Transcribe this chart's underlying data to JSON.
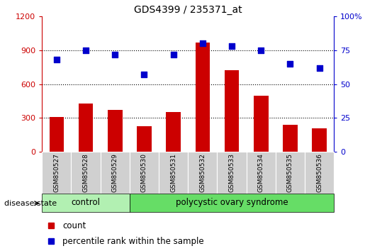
{
  "title": "GDS4399 / 235371_at",
  "samples": [
    "GSM850527",
    "GSM850528",
    "GSM850529",
    "GSM850530",
    "GSM850531",
    "GSM850532",
    "GSM850533",
    "GSM850534",
    "GSM850535",
    "GSM850536"
  ],
  "counts": [
    310,
    430,
    370,
    230,
    350,
    970,
    720,
    500,
    240,
    210
  ],
  "percentiles": [
    68,
    75,
    72,
    57,
    72,
    80,
    78,
    75,
    65,
    62
  ],
  "ylim_left": [
    0,
    1200
  ],
  "ylim_right": [
    0,
    100
  ],
  "yticks_left": [
    0,
    300,
    600,
    900,
    1200
  ],
  "yticks_right": [
    0,
    25,
    50,
    75,
    100
  ],
  "ytick_right_labels": [
    "0",
    "25",
    "50",
    "75",
    "100%"
  ],
  "bar_color": "#cc0000",
  "dot_color": "#0000cc",
  "grid_color": "#000000",
  "control_samples": 3,
  "control_label": "control",
  "disease_label": "polycystic ovary syndrome",
  "disease_state_label": "disease state",
  "control_color": "#b2f0b2",
  "disease_color": "#66dd66",
  "sample_bg_color": "#d0d0d0",
  "legend_count_label": "count",
  "legend_percentile_label": "percentile rank within the sample",
  "bar_width": 0.5,
  "dot_size": 40
}
